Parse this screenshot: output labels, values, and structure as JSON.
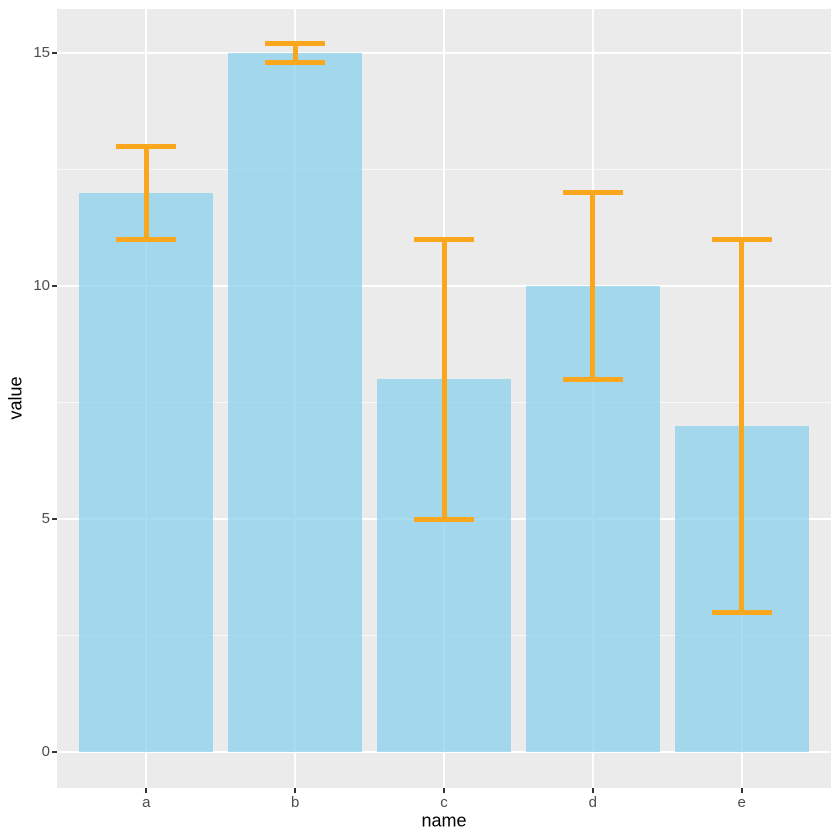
{
  "chart_data": {
    "type": "bar",
    "title": "",
    "xlabel": "name",
    "ylabel": "value",
    "categories": [
      "a",
      "b",
      "c",
      "d",
      "e"
    ],
    "values": [
      12,
      15,
      8,
      10,
      7
    ],
    "error_low": [
      11,
      14.8,
      5,
      8,
      3
    ],
    "error_high": [
      13,
      15.2,
      11,
      12,
      11
    ],
    "y_ticks": [
      0,
      5,
      10,
      15
    ],
    "y_minor_gridlines": [
      2.5,
      7.5,
      12.5
    ],
    "ylim": [
      0,
      15.9
    ],
    "grid": "on",
    "legend": "none",
    "bar_opacity": 0.72,
    "colors": {
      "bar_fill": "#87CEEB",
      "errorbar": "#FAA71E",
      "panel_bg": "#EBEBEB",
      "grid": "#FFFFFF",
      "axis_text": "#4D4D4D",
      "axis_title": "#000000",
      "tick_mark": "#333333"
    }
  }
}
